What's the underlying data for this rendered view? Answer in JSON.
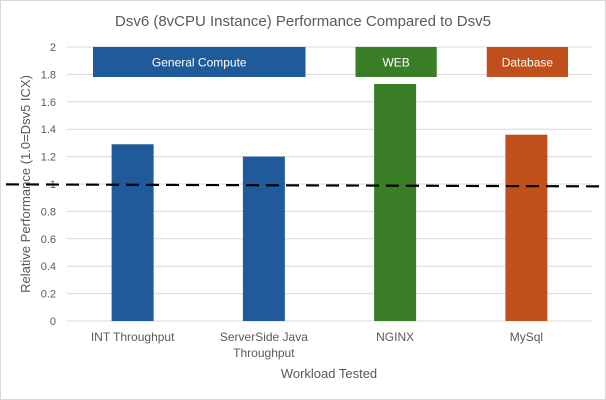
{
  "chart_data": {
    "type": "bar",
    "title": "Dsv6 (8vCPU Instance) Performance Compared to Dsv5",
    "xlabel": "Workload Tested",
    "ylabel": "Relative Performance (1.0=Dsv5 ICX)",
    "ylim": [
      0,
      2
    ],
    "yticks": [
      "0",
      "0.2",
      "0.4",
      "0.6",
      "0.8",
      "1",
      "1.2",
      "1.4",
      "1.6",
      "1.8",
      "2"
    ],
    "categories": [
      [
        "INT Throughput"
      ],
      [
        "ServerSide Java",
        "Throughput"
      ],
      [
        "NGINX"
      ],
      [
        "MySql"
      ]
    ],
    "values": [
      1.29,
      1.2,
      1.73,
      1.36
    ],
    "bar_colors": [
      "#1f5b9a",
      "#1f5b9a",
      "#3a7d27",
      "#c0501b"
    ],
    "reference_line": {
      "value": 0.99,
      "style": "dashed",
      "color": "#000000"
    },
    "group_labels": [
      {
        "text": "General Compute",
        "color": "#1f5b9a",
        "spans": [
          0,
          1
        ]
      },
      {
        "text": "WEB",
        "color": "#3a7d27",
        "spans": [
          2,
          2
        ]
      },
      {
        "text": "Database",
        "color": "#c0501b",
        "spans": [
          3,
          3
        ]
      }
    ],
    "grid": true,
    "legend": "none"
  }
}
